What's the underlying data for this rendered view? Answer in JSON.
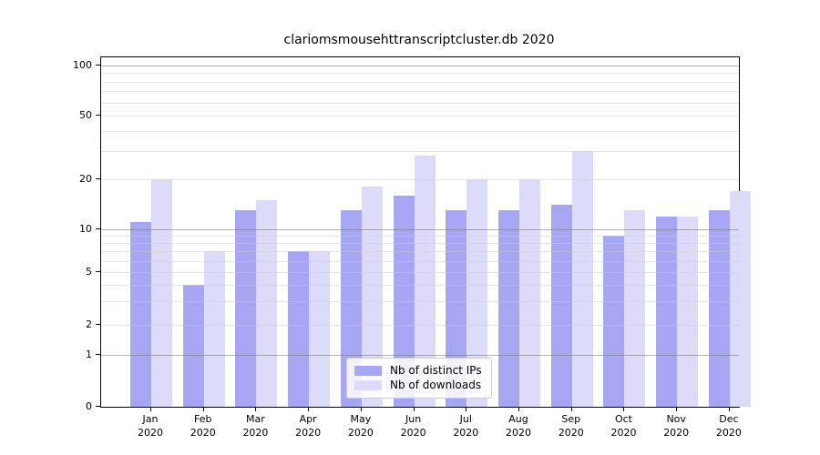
{
  "figure": {
    "title": "clariomsmousehttranscriptcluster.db 2020",
    "background": "#ffffff"
  },
  "chart_data": {
    "type": "bar",
    "title": "clariomsmousehttranscriptcluster.db 2020",
    "categories": [
      "Jan",
      "Feb",
      "Mar",
      "Apr",
      "May",
      "Jun",
      "Jul",
      "Aug",
      "Sep",
      "Oct",
      "Nov",
      "Dec"
    ],
    "category_year": "2020",
    "series": [
      {
        "name": "Nb of distinct IPs",
        "color": "#a6a6f2",
        "values": [
          11,
          4,
          13,
          7,
          13,
          16,
          13,
          13,
          14,
          9,
          12,
          13
        ]
      },
      {
        "name": "Nb of downloads",
        "color": "#dcdcfa",
        "values": [
          20,
          7,
          15,
          7,
          18,
          28,
          20,
          20,
          30,
          13,
          12,
          17
        ]
      }
    ],
    "xlabel": "",
    "ylabel": "",
    "y_axis": {
      "ticks": [
        100,
        50,
        20,
        10,
        5,
        2,
        1,
        0
      ],
      "scale": "log-like above 1 with linear 0-1 baseline",
      "range": [
        0,
        100
      ]
    },
    "grid": {
      "on": true,
      "major_values": [
        1,
        10,
        100
      ],
      "minor_values": [
        2,
        3,
        4,
        5,
        6,
        7,
        8,
        9,
        20,
        30,
        40,
        50,
        60,
        70,
        80,
        90
      ],
      "drawn_over_bars": true
    },
    "legend": {
      "position": "lower center",
      "entries": [
        "Nb of distinct IPs",
        "Nb of downloads"
      ]
    },
    "style": {
      "major_grid_color": "rgba(115,115,115,0.55)",
      "minor_grid_color": "rgba(205,205,205,0.5)",
      "spine_color": "#000000",
      "text_color": "#000000"
    }
  }
}
